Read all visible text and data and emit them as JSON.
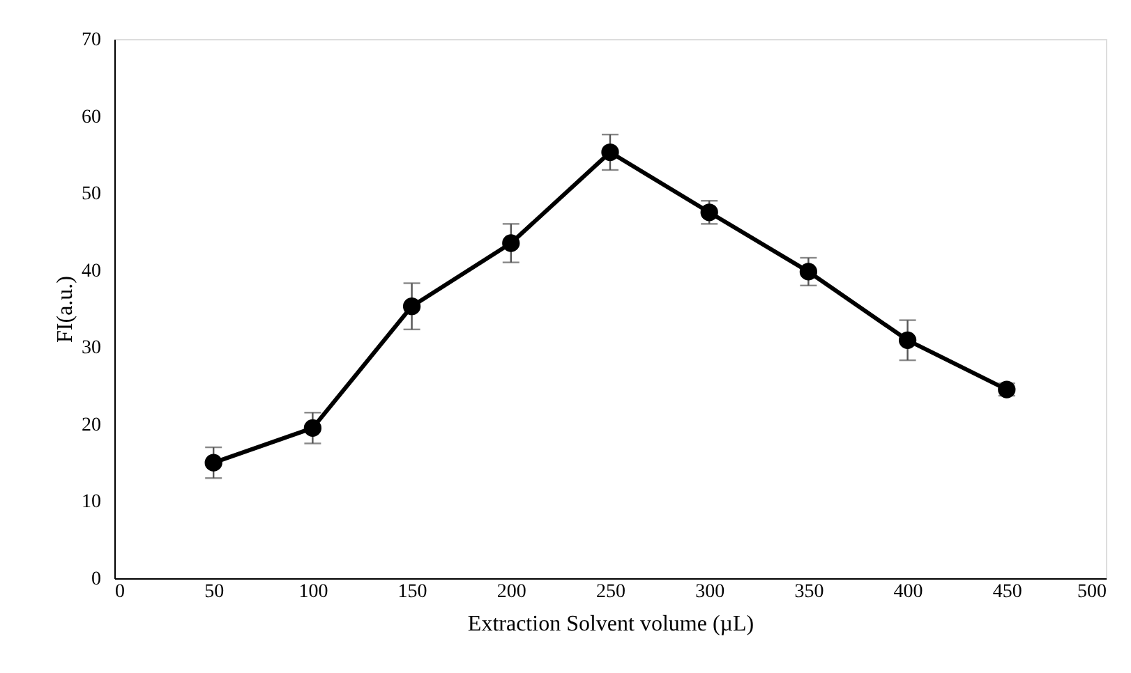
{
  "chart_data": {
    "type": "line",
    "xlabel": "Extraction Solvent volume (µL)",
    "ylabel": "FI(a.u.)",
    "x": [
      50,
      100,
      150,
      200,
      250,
      300,
      350,
      400,
      450
    ],
    "series": [
      {
        "color": "#000000",
        "values": [
          15,
          19.5,
          35.3,
          43.5,
          55.3,
          47.5,
          39.8,
          30.9,
          24.5
        ],
        "errors": [
          2,
          2,
          3,
          2.5,
          2.3,
          1.5,
          1.8,
          2.6,
          0.8
        ]
      }
    ],
    "xlim": [
      0,
      500
    ],
    "xticks": [
      0,
      50,
      100,
      150,
      200,
      250,
      300,
      350,
      400,
      450,
      500
    ],
    "ylim": [
      0,
      70
    ],
    "yticks": [
      0,
      10,
      20,
      30,
      40,
      50,
      60,
      70
    ],
    "grid": false,
    "marker": "circle",
    "line_style": "solid"
  }
}
